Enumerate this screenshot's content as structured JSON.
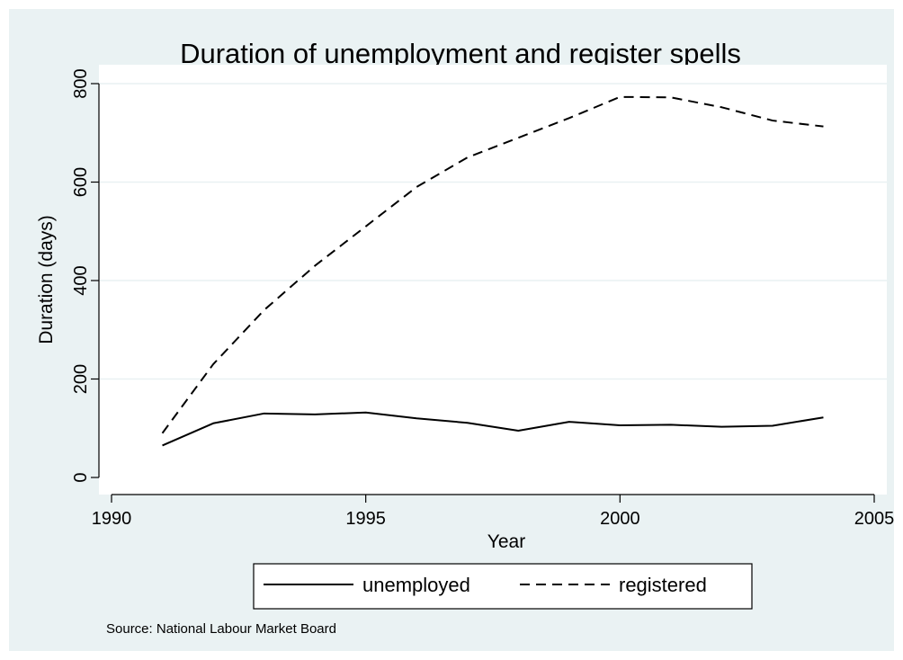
{
  "chart_data": {
    "type": "line",
    "title": "Duration of unemployment and register spells",
    "xlabel": "Year",
    "ylabel": "Duration (days)",
    "xlim": [
      1990,
      2005
    ],
    "ylim": [
      0,
      800
    ],
    "xticks": [
      1990,
      1995,
      2000,
      2005
    ],
    "yticks": [
      0,
      200,
      400,
      600,
      800
    ],
    "grid": "horizontal",
    "legend_position": "bottom",
    "x": [
      1991,
      1992,
      1993,
      1994,
      1995,
      1996,
      1997,
      1998,
      1999,
      2000,
      2001,
      2002,
      2003,
      2004
    ],
    "series": [
      {
        "name": "unemployed",
        "style": "solid",
        "values": [
          65,
          110,
          130,
          128,
          132,
          120,
          111,
          95,
          113,
          106,
          107,
          103,
          105,
          122
        ]
      },
      {
        "name": "registered",
        "style": "dashed",
        "values": [
          90,
          230,
          340,
          430,
          510,
          590,
          650,
          690,
          730,
          773,
          772,
          752,
          725,
          713
        ]
      }
    ],
    "note": "Source: National Labour Market Board"
  },
  "colors": {
    "background": "#eaf2f3",
    "plot_background": "#ffffff",
    "grid": "#e9f1f2",
    "line": "#000000"
  }
}
